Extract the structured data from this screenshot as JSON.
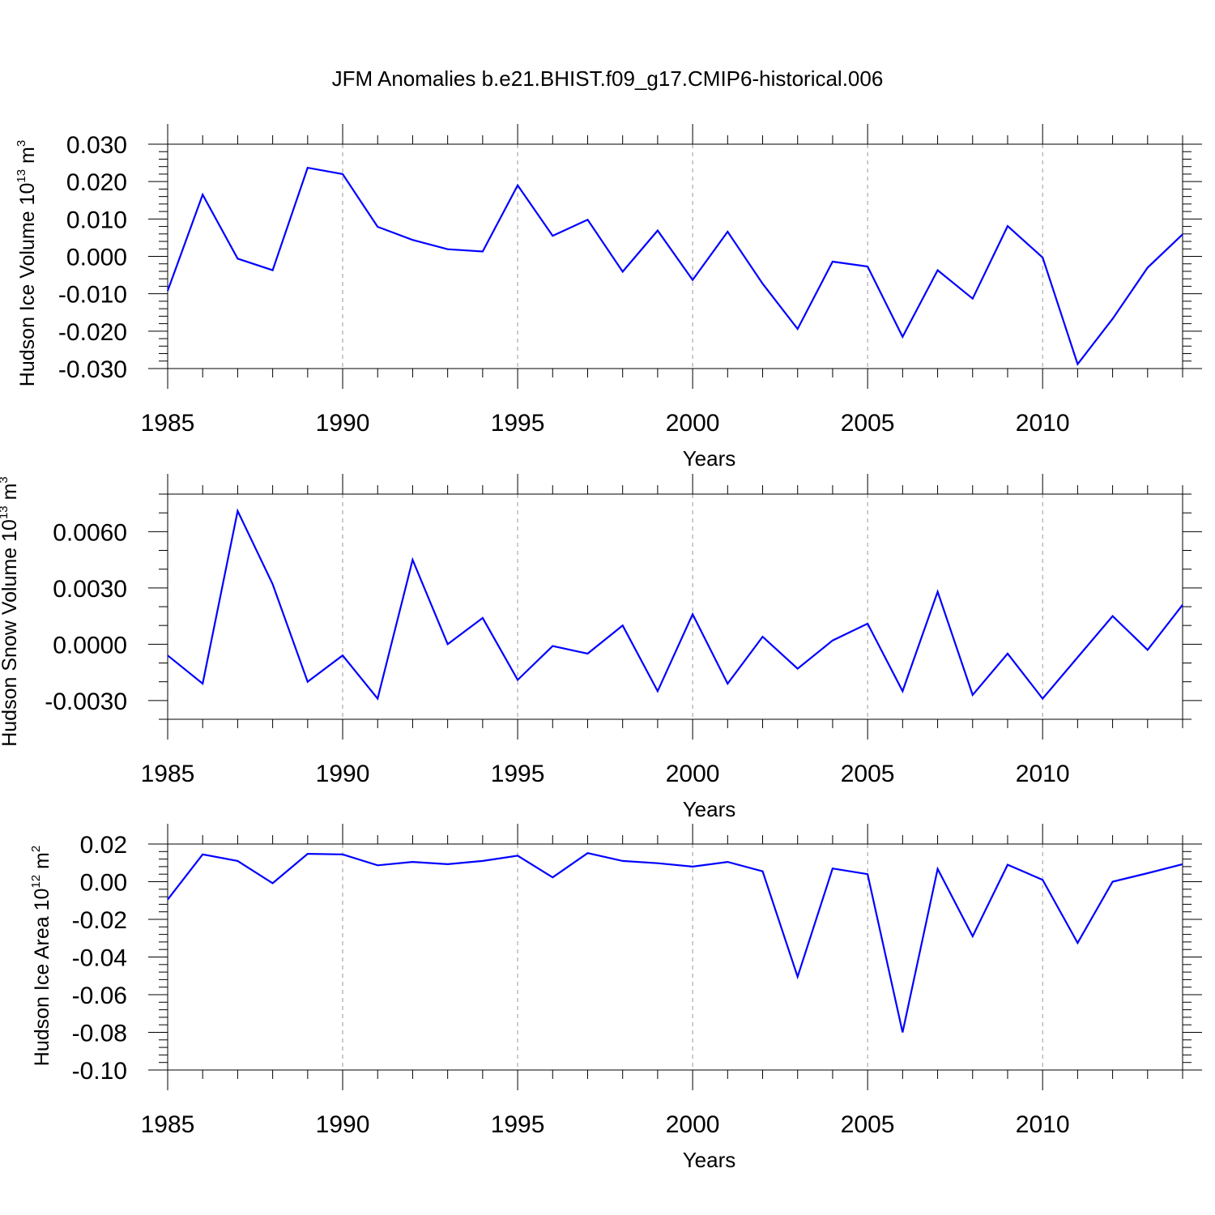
{
  "title": "JFM Anomalies b.e21.BHIST.f09_g17.CMIP6-historical.006",
  "colors": {
    "line": "#0000ff",
    "frame": "#000000",
    "grid": "#999999"
  },
  "chart_data": [
    {
      "type": "line",
      "ylabel": "Hudson Ice Volume 10",
      "ylabel_exp": "13",
      "ylabel_unit": " m",
      "ylabel_unit_exp": "3",
      "xlabel": "Years",
      "xlim": [
        1985,
        2014
      ],
      "ylim": [
        -0.03,
        0.03
      ],
      "yticks": [
        -0.03,
        -0.02,
        -0.01,
        0.0,
        0.01,
        0.02,
        0.03
      ],
      "ytick_labels": [
        "-0.030",
        "-0.020",
        "-0.010",
        "0.000",
        "0.010",
        "0.020",
        "0.030"
      ],
      "yminor_step": 0.002,
      "xticks": [
        1985,
        1990,
        1995,
        2000,
        2005,
        2010
      ],
      "xtick_labels": [
        "1985",
        "1990",
        "1995",
        "2000",
        "2005",
        "2010"
      ],
      "grid": "vertical dashed at major x ticks",
      "x": [
        1985,
        1986,
        1987,
        1988,
        1989,
        1990,
        1991,
        1992,
        1993,
        1994,
        1995,
        1996,
        1997,
        1998,
        1999,
        2000,
        2001,
        2002,
        2003,
        2004,
        2005,
        2006,
        2007,
        2008,
        2009,
        2010,
        2011,
        2012,
        2013,
        2014
      ],
      "values": [
        -0.0092,
        0.0165,
        -0.0006,
        -0.0037,
        0.0237,
        0.022,
        0.0079,
        0.0044,
        0.0019,
        0.0013,
        0.019,
        0.0055,
        0.0098,
        -0.0041,
        0.0069,
        -0.0063,
        0.0066,
        -0.0073,
        -0.0194,
        -0.0014,
        -0.0027,
        -0.0215,
        -0.0037,
        -0.0113,
        0.0081,
        -0.0003,
        -0.0288,
        -0.0167,
        -0.003,
        0.0059
      ]
    },
    {
      "type": "line",
      "ylabel": "Hudson Snow Volume 10",
      "ylabel_exp": "13",
      "ylabel_unit": " m",
      "ylabel_unit_exp": "3",
      "xlabel": "Years",
      "xlim": [
        1985,
        2014
      ],
      "ylim": [
        -0.004,
        0.008
      ],
      "yticks": [
        -0.003,
        0.0,
        0.003,
        0.006
      ],
      "ytick_labels": [
        "-0.0030",
        "0.0000",
        "0.0030",
        "0.0060"
      ],
      "yminor_step": 0.001,
      "xticks": [
        1985,
        1990,
        1995,
        2000,
        2005,
        2010
      ],
      "xtick_labels": [
        "1985",
        "1990",
        "1995",
        "2000",
        "2005",
        "2010"
      ],
      "grid": "vertical dashed at major x ticks",
      "x": [
        1985,
        1986,
        1987,
        1988,
        1989,
        1990,
        1991,
        1992,
        1993,
        1994,
        1995,
        1996,
        1997,
        1998,
        1999,
        2000,
        2001,
        2002,
        2003,
        2004,
        2005,
        2006,
        2007,
        2008,
        2009,
        2010,
        2011,
        2012,
        2013,
        2014
      ],
      "values": [
        -0.0006,
        -0.0021,
        0.0071,
        0.0032,
        -0.002,
        -0.0006,
        -0.0029,
        0.0045,
        0.0,
        0.0014,
        -0.0019,
        -0.0001,
        -0.0005,
        0.001,
        -0.0025,
        0.0016,
        -0.0021,
        0.0004,
        -0.0013,
        0.0002,
        0.0011,
        -0.0025,
        0.0028,
        -0.0027,
        -0.0005,
        -0.0029,
        -0.0007,
        0.0015,
        -0.0003,
        0.0021
      ]
    },
    {
      "type": "line",
      "ylabel": "Hudson Ice Area 10",
      "ylabel_exp": "12",
      "ylabel_unit": " m",
      "ylabel_unit_exp": "2",
      "xlabel": "Years",
      "xlim": [
        1985,
        2014
      ],
      "ylim": [
        -0.1,
        0.02
      ],
      "yticks": [
        -0.1,
        -0.08,
        -0.06,
        -0.04,
        -0.02,
        0.0,
        0.02
      ],
      "ytick_labels": [
        "-0.10",
        "-0.08",
        "-0.06",
        "-0.04",
        "-0.02",
        "0.00",
        "0.02"
      ],
      "yminor_step": 0.004,
      "xticks": [
        1985,
        1990,
        1995,
        2000,
        2005,
        2010
      ],
      "xtick_labels": [
        "1985",
        "1990",
        "1995",
        "2000",
        "2005",
        "2010"
      ],
      "grid": "vertical dashed at major x ticks",
      "x": [
        1985,
        1986,
        1987,
        1988,
        1989,
        1990,
        1991,
        1992,
        1993,
        1994,
        1995,
        1996,
        1997,
        1998,
        1999,
        2000,
        2001,
        2002,
        2003,
        2004,
        2005,
        2006,
        2007,
        2008,
        2009,
        2010,
        2011,
        2012,
        2013,
        2014
      ],
      "values": [
        -0.0095,
        0.0145,
        0.011,
        -0.0008,
        0.0148,
        0.0145,
        0.0087,
        0.0105,
        0.0093,
        0.011,
        0.0138,
        0.0023,
        0.0152,
        0.011,
        0.0098,
        0.008,
        0.0105,
        0.0055,
        -0.0505,
        0.007,
        0.004,
        -0.08,
        0.0068,
        -0.029,
        0.009,
        0.001,
        -0.0325,
        0.0,
        0.0045,
        0.0093
      ]
    }
  ]
}
